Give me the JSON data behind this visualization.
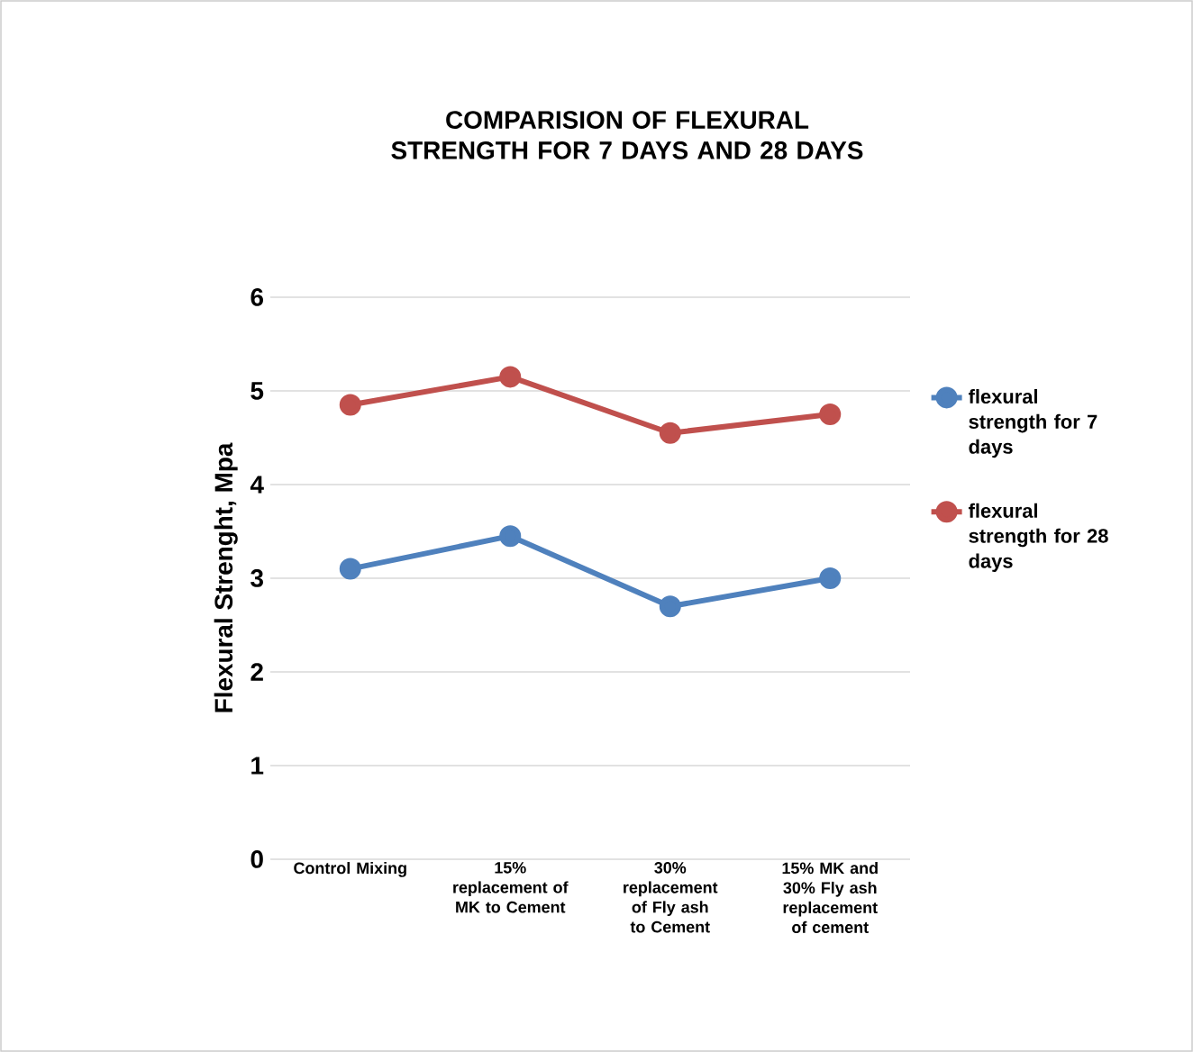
{
  "chart_data": {
    "type": "line",
    "title": "COMPARISION OF FLEXURAL STRENGTH FOR 7 DAYS AND 28 DAYS",
    "ylabel": "Flexural Strenght, Mpa",
    "categories": [
      "Control Mixing",
      "15% replacement of MK to Cement",
      "30% replacement of Fly ash to Cement",
      "15% MK and 30% Fly ash replacement of cement"
    ],
    "series": [
      {
        "name": "flexural strength for 7 days",
        "color": "#4f81bd",
        "values": [
          3.1,
          3.45,
          2.7,
          3.0
        ]
      },
      {
        "name": "flexural strength for 28 days",
        "color": "#c0504d",
        "values": [
          4.85,
          5.15,
          4.55,
          4.75
        ]
      }
    ],
    "ylim": [
      0,
      6
    ],
    "yticks": [
      0,
      1,
      2,
      3,
      4,
      5,
      6
    ],
    "grid": "y",
    "legend": "right",
    "marker": "circle",
    "line_style": "solid"
  }
}
